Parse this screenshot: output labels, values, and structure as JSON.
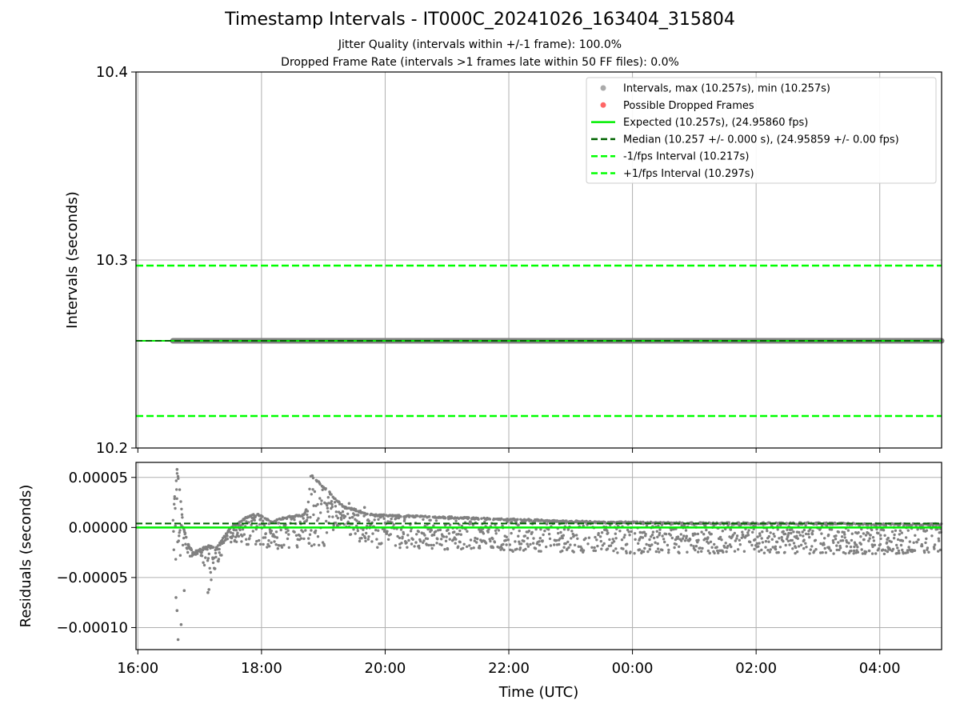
{
  "title": "Timestamp Intervals - IT000C_20241026_163404_315804",
  "subtitle_lines": [
    "Jitter Quality (intervals within +/-1 frame): 100.0%",
    "Dropped Frame Rate (intervals >1 frames late within 50 FF files): 0.0%"
  ],
  "colors": {
    "intervals": "#808080",
    "dropped": "#ff4444",
    "expected": "#00ee00",
    "median": "#006400",
    "fps_band": "#00ff00",
    "grid": "#b0b0b0"
  },
  "chart_data": [
    {
      "type": "scatter",
      "ylabel": "Intervals (seconds)",
      "ylim": [
        10.2,
        10.4
      ],
      "yticks": [
        "10.2",
        "10.3",
        "10.4"
      ],
      "yticks_values": [
        10.2,
        10.3,
        10.4
      ],
      "xlim": [
        "16:00",
        "05:00"
      ],
      "grid": true,
      "legend_position": "upper right",
      "legend": [
        {
          "label": "Intervals, max (10.257s), min (10.257s)",
          "marker": "dot",
          "color": "#aaaaaa"
        },
        {
          "label": "Possible Dropped Frames",
          "marker": "dot",
          "color": "#ff6666"
        },
        {
          "label": "Expected (10.257s), (24.95860 fps)",
          "marker": "solid",
          "color": "#00ee00"
        },
        {
          "label": "Median (10.257 +/- 0.000 s), (24.95859 +/- 0.00 fps)",
          "marker": "dashed",
          "color": "#006400"
        },
        {
          "label": "-1/fps Interval (10.217s)",
          "marker": "dashed",
          "color": "#00ff00"
        },
        {
          "label": "+1/fps Interval (10.297s)",
          "marker": "dashed",
          "color": "#00ff00"
        }
      ],
      "reference_lines": {
        "expected": 10.257,
        "median": 10.257,
        "minus_fps": 10.217,
        "plus_fps": 10.297
      },
      "series": [
        {
          "name": "Intervals",
          "x_start": "16:34",
          "x_end": "05:00",
          "value": 10.257
        }
      ]
    },
    {
      "type": "scatter",
      "xlabel": "Time (UTC)",
      "ylabel": "Residuals (seconds)",
      "ylim": [
        -0.000122,
        6.5e-05
      ],
      "yticks": [
        "0.00005",
        "0.00000",
        "−0.00005",
        "−0.00010"
      ],
      "yticks_values": [
        5e-05,
        0.0,
        -5e-05,
        -0.0001
      ],
      "xlim": [
        "16:00",
        "05:00"
      ],
      "xticks": [
        "16:00",
        "18:00",
        "20:00",
        "22:00",
        "00:00",
        "02:00",
        "04:00"
      ],
      "xticks_hours": [
        0,
        2,
        4,
        6,
        8,
        10,
        12
      ],
      "grid": true,
      "reference_lines": {
        "expected": 0.0,
        "median": 4e-06
      },
      "series": [
        {
          "name": "Residuals upper envelope",
          "x": [
            "16:34",
            "16:36",
            "16:38",
            "16:40",
            "16:44",
            "16:50",
            "16:55",
            "17:00",
            "17:05",
            "17:10",
            "17:15",
            "17:20",
            "17:25",
            "17:30",
            "17:35",
            "17:40",
            "17:45",
            "17:50",
            "17:55",
            "18:00",
            "18:10",
            "18:20",
            "18:30",
            "18:40",
            "18:45",
            "18:48",
            "18:50",
            "18:55",
            "19:00",
            "19:05",
            "19:10",
            "19:20",
            "19:30",
            "19:40",
            "19:50",
            "20:00",
            "20:30",
            "21:00",
            "21:30",
            "22:00",
            "22:30",
            "23:00",
            "23:30",
            "00:00",
            "01:00",
            "02:00",
            "03:00",
            "04:00",
            "05:00"
          ],
          "y": [
            5e-06,
            3.5e-05,
            5.5e-05,
            4.5e-05,
            0.0,
            -2e-05,
            -2.5e-05,
            -2.2e-05,
            -2e-05,
            -1.8e-05,
            -2.2e-05,
            -1.5e-05,
            -8e-06,
            0.0,
            3e-06,
            6e-06,
            1e-05,
            1.2e-05,
            1.3e-05,
            1.2e-05,
            5e-06,
            9e-06,
            1.1e-05,
            1.2e-05,
            2e-05,
            5.3e-05,
            5e-05,
            4.6e-05,
            4e-05,
            3.6e-05,
            3e-05,
            2e-05,
            1.8e-05,
            1.4e-05,
            1.2e-05,
            1.2e-05,
            1.1e-05,
            1e-05,
            9e-06,
            8e-06,
            7e-06,
            6e-06,
            5e-06,
            5e-06,
            4e-06,
            4e-06,
            4e-06,
            3e-06,
            3e-06
          ]
        },
        {
          "name": "Residuals lower envelope",
          "x": [
            "16:34",
            "16:38",
            "16:42",
            "16:46",
            "16:50",
            "16:55",
            "17:00",
            "17:05",
            "17:10",
            "17:20",
            "17:30",
            "17:40",
            "17:50",
            "18:00",
            "18:30",
            "19:00",
            "19:10",
            "19:20",
            "19:30",
            "19:40",
            "19:50",
            "20:00",
            "21:00",
            "22:00",
            "23:00",
            "00:00",
            "01:00",
            "02:00",
            "03:00",
            "04:00",
            "05:00"
          ],
          "y": [
            -2e-05,
            -4.5e-05,
            -3e-05,
            -3e-05,
            -3e-05,
            -2.8e-05,
            -2.5e-05,
            -4e-05,
            -6e-05,
            -3e-05,
            -1.5e-05,
            -1.5e-05,
            -2e-05,
            -2.2e-05,
            -2.2e-05,
            -2e-05,
            -3e-06,
            -8e-06,
            -1.2e-05,
            -1.6e-05,
            -2e-05,
            -2.1e-05,
            -2.2e-05,
            -2.4e-05,
            -2.5e-05,
            -2.6e-05,
            -2.6e-05,
            -2.6e-05,
            -2.6e-05,
            -2.7e-05,
            -2.5e-05
          ]
        }
      ],
      "outliers": [
        {
          "x": "16:38",
          "y": 5.8e-05
        },
        {
          "x": "16:37",
          "y": -7e-05
        },
        {
          "x": "16:38",
          "y": -8.3e-05
        },
        {
          "x": "16:39",
          "y": -0.000112
        },
        {
          "x": "16:42",
          "y": -9.7e-05
        },
        {
          "x": "16:45",
          "y": -6.3e-05
        },
        {
          "x": "17:08",
          "y": -6.5e-05
        },
        {
          "x": "17:09",
          "y": -6.2e-05
        },
        {
          "x": "19:25",
          "y": 2.4e-05
        },
        {
          "x": "19:40",
          "y": 2e-05
        }
      ]
    }
  ]
}
